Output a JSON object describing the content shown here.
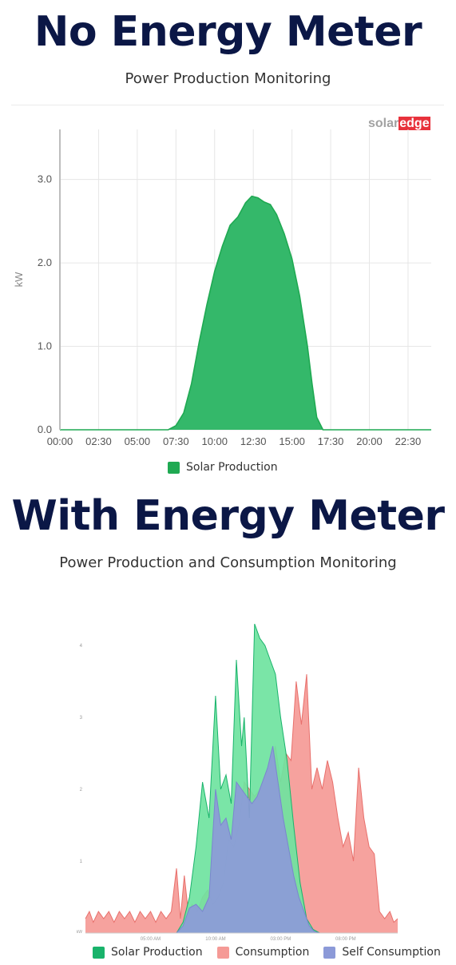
{
  "section1": {
    "title": "No Energy Meter",
    "subtitle": "Power Production Monitoring",
    "brand": {
      "part1": "solar",
      "part2": "edge",
      "color1": "#a2a2a2",
      "color2": "#e8323c"
    }
  },
  "section2": {
    "title": "With Energy Meter",
    "subtitle": "Power Production and Consumption Monitoring"
  },
  "chart_data": [
    {
      "type": "area",
      "ylabel": "kW",
      "xlabel": "",
      "x_ticks": [
        "00:00",
        "02:30",
        "05:00",
        "07:30",
        "10:00",
        "12:30",
        "15:00",
        "17:30",
        "20:00",
        "22:30"
      ],
      "y_ticks": [
        "0.0",
        "1.0",
        "2.0",
        "3.0"
      ],
      "ylim": [
        0,
        3.6
      ],
      "xlim_hours": [
        0,
        24
      ],
      "grid": true,
      "legend_position": "bottom",
      "series": [
        {
          "name": "Solar Production",
          "color": "#1fa952",
          "fill": "#34b86a",
          "x_hours": [
            0,
            7.0,
            7.5,
            8.0,
            8.5,
            9.0,
            9.5,
            10.0,
            10.5,
            11.0,
            11.5,
            12.0,
            12.4,
            12.8,
            13.2,
            13.6,
            14.0,
            14.5,
            15.0,
            15.5,
            16.0,
            16.3,
            16.6,
            17.0,
            24
          ],
          "y": [
            0,
            0,
            0.05,
            0.2,
            0.55,
            1.05,
            1.5,
            1.9,
            2.2,
            2.45,
            2.55,
            2.72,
            2.8,
            2.78,
            2.73,
            2.7,
            2.58,
            2.35,
            2.05,
            1.6,
            1.0,
            0.55,
            0.15,
            0.0,
            0
          ]
        }
      ]
    },
    {
      "type": "area",
      "ylabel": "kW",
      "xlabel": "",
      "x_ticks": [
        "05:00 AM",
        "10:00 AM",
        "03:00 PM",
        "08:00 PM"
      ],
      "y_ticks": [
        "1",
        "2",
        "3",
        "4"
      ],
      "ylim": [
        0,
        4.4
      ],
      "xlim_hours": [
        0,
        24
      ],
      "grid": false,
      "legend_position": "bottom",
      "series": [
        {
          "name": "Solar Production",
          "color": "#19b36b",
          "fill": "#6fe3a0",
          "x_hours": [
            0,
            7.0,
            7.5,
            8.0,
            8.5,
            9.0,
            9.5,
            10.0,
            10.4,
            10.8,
            11.2,
            11.6,
            12.0,
            12.2,
            12.6,
            13.0,
            13.4,
            13.8,
            14.2,
            14.6,
            15.0,
            15.5,
            16.0,
            16.5,
            17.0,
            17.5,
            18.0,
            24
          ],
          "y": [
            0,
            0,
            0.15,
            0.5,
            1.2,
            2.1,
            1.6,
            3.3,
            2.0,
            2.2,
            1.8,
            3.8,
            2.6,
            3.0,
            1.6,
            4.3,
            4.1,
            4.0,
            3.8,
            3.6,
            3.0,
            2.4,
            1.5,
            0.7,
            0.2,
            0.05,
            0,
            0
          ]
        },
        {
          "name": "Consumption",
          "color": "#e8706c",
          "fill": "#f59a96",
          "x_hours": [
            0,
            0.3,
            0.6,
            1.0,
            1.4,
            1.8,
            2.2,
            2.6,
            3.0,
            3.4,
            3.8,
            4.2,
            4.6,
            5.0,
            5.4,
            5.8,
            6.2,
            6.6,
            7.0,
            7.3,
            7.6,
            7.9,
            8.2,
            8.6,
            9.0,
            9.4,
            9.8,
            10.2,
            10.6,
            11.0,
            11.4,
            11.8,
            12.2,
            12.6,
            13.0,
            13.4,
            13.8,
            14.2,
            14.6,
            15.0,
            15.4,
            15.8,
            16.2,
            16.6,
            17.0,
            17.4,
            17.8,
            18.2,
            18.6,
            19.0,
            19.4,
            19.8,
            20.2,
            20.6,
            21.0,
            21.4,
            21.8,
            22.2,
            22.6,
            23.0,
            23.4,
            23.7,
            24
          ],
          "y": [
            0.2,
            0.3,
            0.15,
            0.3,
            0.2,
            0.3,
            0.15,
            0.3,
            0.2,
            0.3,
            0.15,
            0.3,
            0.2,
            0.3,
            0.15,
            0.3,
            0.2,
            0.3,
            0.9,
            0.2,
            0.8,
            0.3,
            0.4,
            0.3,
            0.5,
            0.6,
            0.4,
            0.5,
            0.7,
            1.3,
            1.2,
            1.5,
            2.1,
            2.0,
            1.9,
            2.0,
            2.2,
            2.3,
            2.6,
            2.1,
            2.5,
            2.4,
            3.5,
            2.9,
            3.6,
            2.0,
            2.3,
            2.0,
            2.4,
            2.1,
            1.6,
            1.2,
            1.4,
            1.0,
            2.3,
            1.6,
            1.2,
            1.1,
            0.3,
            0.2,
            0.3,
            0.15,
            0.2
          ]
        },
        {
          "name": "Self Consumption",
          "color": "#7a86cf",
          "fill": "#8c9ad8",
          "x_hours": [
            0,
            7.0,
            7.5,
            8.0,
            8.5,
            9.0,
            9.5,
            10.0,
            10.4,
            10.8,
            11.2,
            11.6,
            12.0,
            12.4,
            12.8,
            13.2,
            13.6,
            14.0,
            14.4,
            14.8,
            15.2,
            15.6,
            16.0,
            16.4,
            16.8,
            17.2,
            17.6,
            18.0,
            24
          ],
          "y": [
            0,
            0,
            0.1,
            0.35,
            0.4,
            0.3,
            0.5,
            2.0,
            1.5,
            1.6,
            1.3,
            2.1,
            2.0,
            1.9,
            1.8,
            1.9,
            2.1,
            2.3,
            2.6,
            2.1,
            1.6,
            1.2,
            0.8,
            0.5,
            0.3,
            0.1,
            0.02,
            0,
            0
          ]
        }
      ]
    }
  ]
}
